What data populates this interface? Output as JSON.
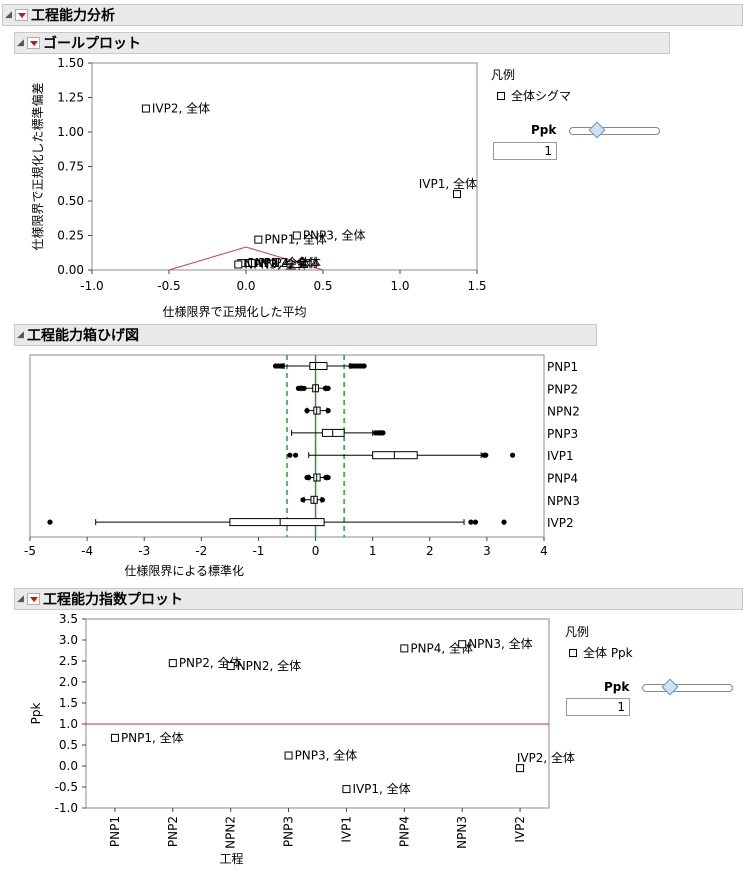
{
  "header": {
    "title": "工程能力分析"
  },
  "goal_plot": {
    "title": "ゴールプロット",
    "legend_title": "凡例",
    "legend_item": "全体シグマ",
    "slider_label": "Ppk",
    "slider_value": "1",
    "slider_fraction": 0.3
  },
  "box_plot": {
    "title": "工程能力箱ひげ図"
  },
  "index_plot": {
    "title": "工程能力指数プロット",
    "legend_title": "凡例",
    "legend_item": "全体 Ppk",
    "slider_label": "Ppk",
    "slider_value": "1",
    "slider_fraction": 0.3
  },
  "chart_data": [
    {
      "type": "scatter",
      "name": "goal-plot",
      "xlabel": "仕様限界で正規化した平均",
      "ylabel": "仕様限界で正規化した標準偏差",
      "xlim": [
        -1.0,
        1.5
      ],
      "ylim": [
        0,
        1.5
      ],
      "x_ticks": [
        "-1.0",
        "-0.5",
        "0.0",
        "0.5",
        "1.0",
        "1.5"
      ],
      "y_ticks": [
        "0.00",
        "0.25",
        "0.50",
        "0.75",
        "1.00",
        "1.25",
        "1.50"
      ],
      "points": [
        {
          "label": "IVP2, 全体",
          "x": -0.65,
          "y": 1.17
        },
        {
          "label": "IVP1, 全体",
          "x": 1.37,
          "y": 0.55
        },
        {
          "label": "PNP3, 全体",
          "x": 0.33,
          "y": 0.25
        },
        {
          "label": "PNP1, 全体",
          "x": 0.08,
          "y": 0.22
        },
        {
          "label": "PNP2, 全体",
          "x": -0.03,
          "y": 0.05
        },
        {
          "label": "NPN2, 全体",
          "x": 0.02,
          "y": 0.05
        },
        {
          "label": "PNP4, 全体",
          "x": 0.04,
          "y": 0.05
        },
        {
          "label": "NPN3, 全体",
          "x": -0.05,
          "y": 0.04
        }
      ],
      "triangle": [
        [
          -0.5,
          0.0
        ],
        [
          0.0,
          0.1667
        ],
        [
          0.5,
          0.0
        ]
      ]
    },
    {
      "type": "box",
      "name": "capability-box-plot",
      "xlabel": "仕様限界による標準化",
      "xlim": [
        -5,
        4
      ],
      "x_ticks": [
        "-5",
        "-4",
        "-3",
        "-2",
        "-1",
        "0",
        "1",
        "2",
        "3",
        "4"
      ],
      "spec_lines": [
        -0.5,
        0.5
      ],
      "target_line": 0,
      "categories": [
        "PNP1",
        "PNP2",
        "NPN2",
        "PNP3",
        "IVP1",
        "PNP4",
        "NPN3",
        "IVP2"
      ],
      "boxes": [
        {
          "name": "PNP1",
          "whisker_low": -0.55,
          "q1": -0.1,
          "median": 0.0,
          "q3": 0.2,
          "whisker_high": 0.6,
          "outliers": [
            -0.7,
            -0.65,
            -0.6,
            -0.58,
            0.62,
            0.65,
            0.7,
            0.75,
            0.8,
            0.85
          ]
        },
        {
          "name": "PNP2",
          "whisker_low": -0.25,
          "q1": -0.05,
          "median": 0.0,
          "q3": 0.05,
          "whisker_high": 0.18,
          "outliers": [
            -0.3,
            -0.27,
            -0.22,
            -0.2,
            0.17,
            0.2,
            0.22
          ]
        },
        {
          "name": "NPN2",
          "whisker_low": -0.15,
          "q1": -0.03,
          "median": 0.02,
          "q3": 0.08,
          "whisker_high": 0.2,
          "outliers": [
            -0.15,
            0.22
          ]
        },
        {
          "name": "PNP3",
          "whisker_low": -0.42,
          "q1": 0.12,
          "median": 0.3,
          "q3": 0.5,
          "whisker_high": 1.0,
          "outliers": [
            1.05,
            1.1,
            1.12,
            1.15,
            1.18
          ]
        },
        {
          "name": "IVP1",
          "whisker_low": -0.12,
          "q1": 1.0,
          "median": 1.38,
          "q3": 1.78,
          "whisker_high": 2.9,
          "outliers": [
            -0.45,
            -0.35,
            2.95,
            2.98,
            3.45
          ]
        },
        {
          "name": "PNP4",
          "whisker_low": -0.12,
          "q1": -0.03,
          "median": 0.02,
          "q3": 0.08,
          "whisker_high": 0.2,
          "outliers": [
            -0.15,
            -0.12,
            0.18,
            0.22
          ]
        },
        {
          "name": "NPN3",
          "whisker_low": -0.2,
          "q1": -0.08,
          "median": -0.03,
          "q3": 0.03,
          "whisker_high": 0.1,
          "outliers": [
            -0.22,
            0.12
          ]
        },
        {
          "name": "IVP2",
          "whisker_low": -3.85,
          "q1": -1.5,
          "median": -0.62,
          "q3": 0.15,
          "whisker_high": 2.6,
          "outliers": [
            -4.65,
            2.72,
            2.8,
            3.3
          ]
        }
      ]
    },
    {
      "type": "scatter",
      "name": "capability-index-plot",
      "xlabel": "工程",
      "ylabel": "Ppk",
      "ylim": [
        -1.0,
        3.5
      ],
      "y_ticks": [
        "-1.0",
        "-0.5",
        "0.0",
        "0.5",
        "1.0",
        "1.5",
        "2.0",
        "2.5",
        "3.0",
        "3.5"
      ],
      "categories": [
        "PNP1",
        "PNP2",
        "NPN2",
        "PNP3",
        "IVP1",
        "PNP4",
        "NPN3",
        "IVP2"
      ],
      "reference_line": 1.0,
      "points": [
        {
          "label": "PNP1, 全体",
          "category": "PNP1",
          "y": 0.67
        },
        {
          "label": "PNP2, 全体",
          "category": "PNP2",
          "y": 2.45
        },
        {
          "label": "NPN2, 全体",
          "category": "NPN2",
          "y": 2.38
        },
        {
          "label": "PNP3, 全体",
          "category": "PNP3",
          "y": 0.25
        },
        {
          "label": "IVP1, 全体",
          "category": "IVP1",
          "y": -0.55
        },
        {
          "label": "PNP4, 全体",
          "category": "PNP4",
          "y": 2.8
        },
        {
          "label": "NPN3, 全体",
          "category": "NPN3",
          "y": 2.9
        },
        {
          "label": "IVP2, 全体",
          "category": "IVP2",
          "y": -0.05
        }
      ]
    }
  ]
}
